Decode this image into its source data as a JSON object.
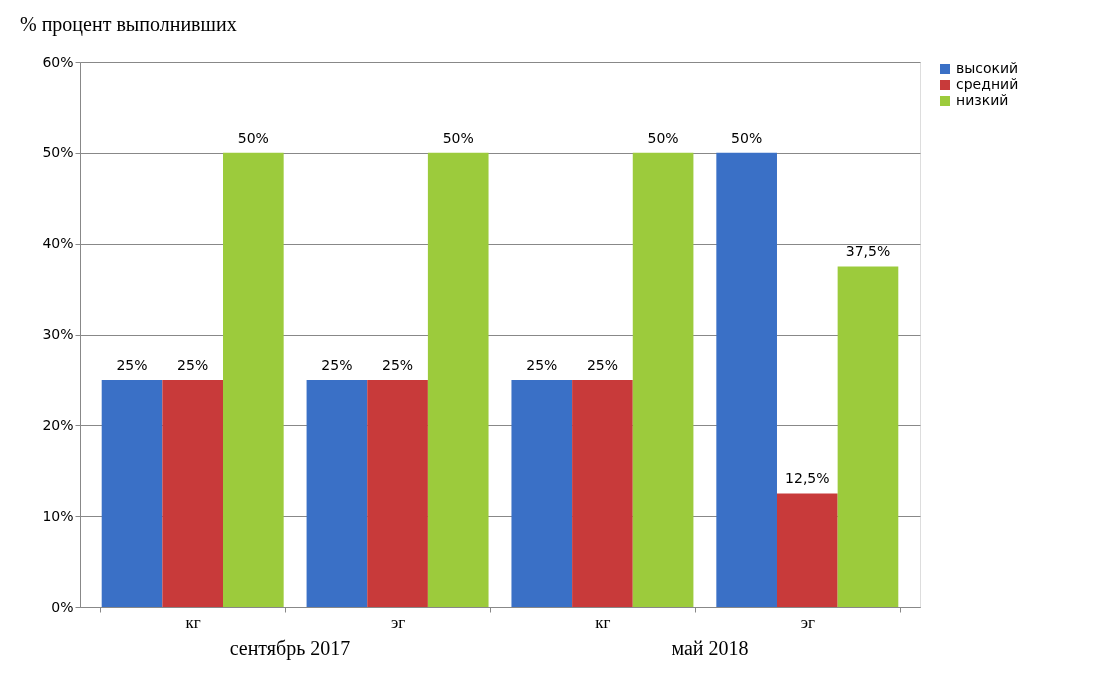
{
  "chart_data": {
    "type": "bar",
    "title": "% процент выполнивших",
    "categories": [
      "кг",
      "эг",
      "кг",
      "эг"
    ],
    "series": [
      {
        "name": "высокий",
        "color": "#3a70c6",
        "values": [
          25,
          25,
          25,
          50
        ],
        "value_labels": [
          "25%",
          "25%",
          "25%",
          "50%"
        ]
      },
      {
        "name": "средний",
        "color": "#c83a3a",
        "values": [
          25,
          25,
          25,
          12.5
        ],
        "value_labels": [
          "25%",
          "25%",
          "25%",
          "12,5%"
        ]
      },
      {
        "name": "низкий",
        "color": "#9ccb3c",
        "values": [
          50,
          50,
          50,
          37.5
        ],
        "value_labels": [
          "50%",
          "50%",
          "50%",
          "37,5%"
        ]
      }
    ],
    "annotations": [
      "сентябрь 2017",
      "май 2018"
    ],
    "ylim": [
      0,
      60
    ],
    "yticks": [
      {
        "value": 0,
        "label": "0%"
      },
      {
        "value": 10,
        "label": "10%"
      },
      {
        "value": 20,
        "label": "20%"
      },
      {
        "value": 30,
        "label": "30%"
      },
      {
        "value": 40,
        "label": "40%"
      },
      {
        "value": 50,
        "label": "50%"
      },
      {
        "value": 60,
        "label": "60%"
      }
    ],
    "grid": "y",
    "legend": "right"
  }
}
